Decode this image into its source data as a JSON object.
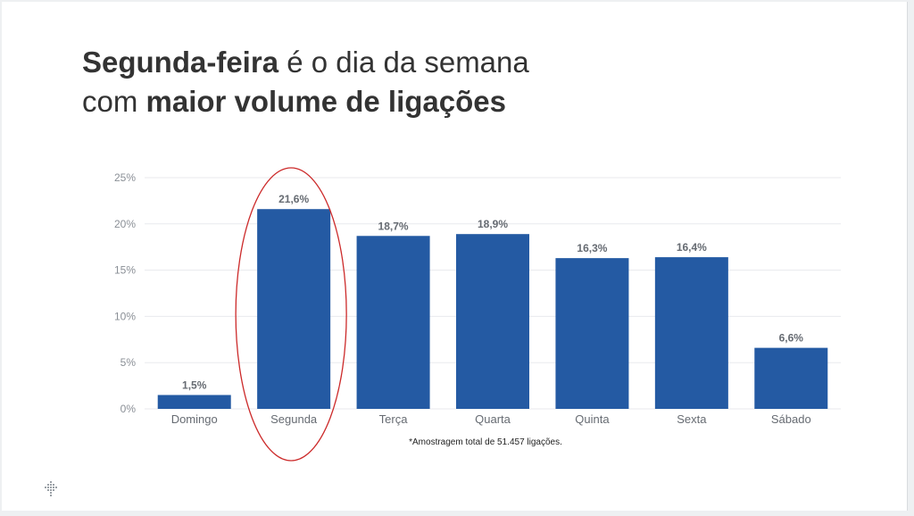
{
  "title": {
    "part1_bold": "Segunda-feira",
    "part2": " é o dia da semana",
    "part3": "com ",
    "part4_bold": "maior volume de ligações"
  },
  "footnote": "*Amostragem total de 51.457 ligações.",
  "colors": {
    "bar": "#245aa3",
    "highlight_ellipse": "#cc2a2a",
    "grid": "#e8eaed"
  },
  "chart_data": {
    "type": "bar",
    "categories": [
      "Domingo",
      "Segunda",
      "Terça",
      "Quarta",
      "Quinta",
      "Sexta",
      "Sábado"
    ],
    "values": [
      1.5,
      21.6,
      18.7,
      18.9,
      16.3,
      16.4,
      6.6
    ],
    "value_labels": [
      "1,5%",
      "21,6%",
      "18,7%",
      "18,9%",
      "16,3%",
      "16,4%",
      "6,6%"
    ],
    "yticks": [
      0,
      5,
      10,
      15,
      20,
      25
    ],
    "ytick_labels": [
      "0%",
      "5%",
      "10%",
      "15%",
      "20%",
      "25%"
    ],
    "ylim": [
      0,
      25
    ],
    "grid": true,
    "highlighted_category": "Segunda"
  }
}
